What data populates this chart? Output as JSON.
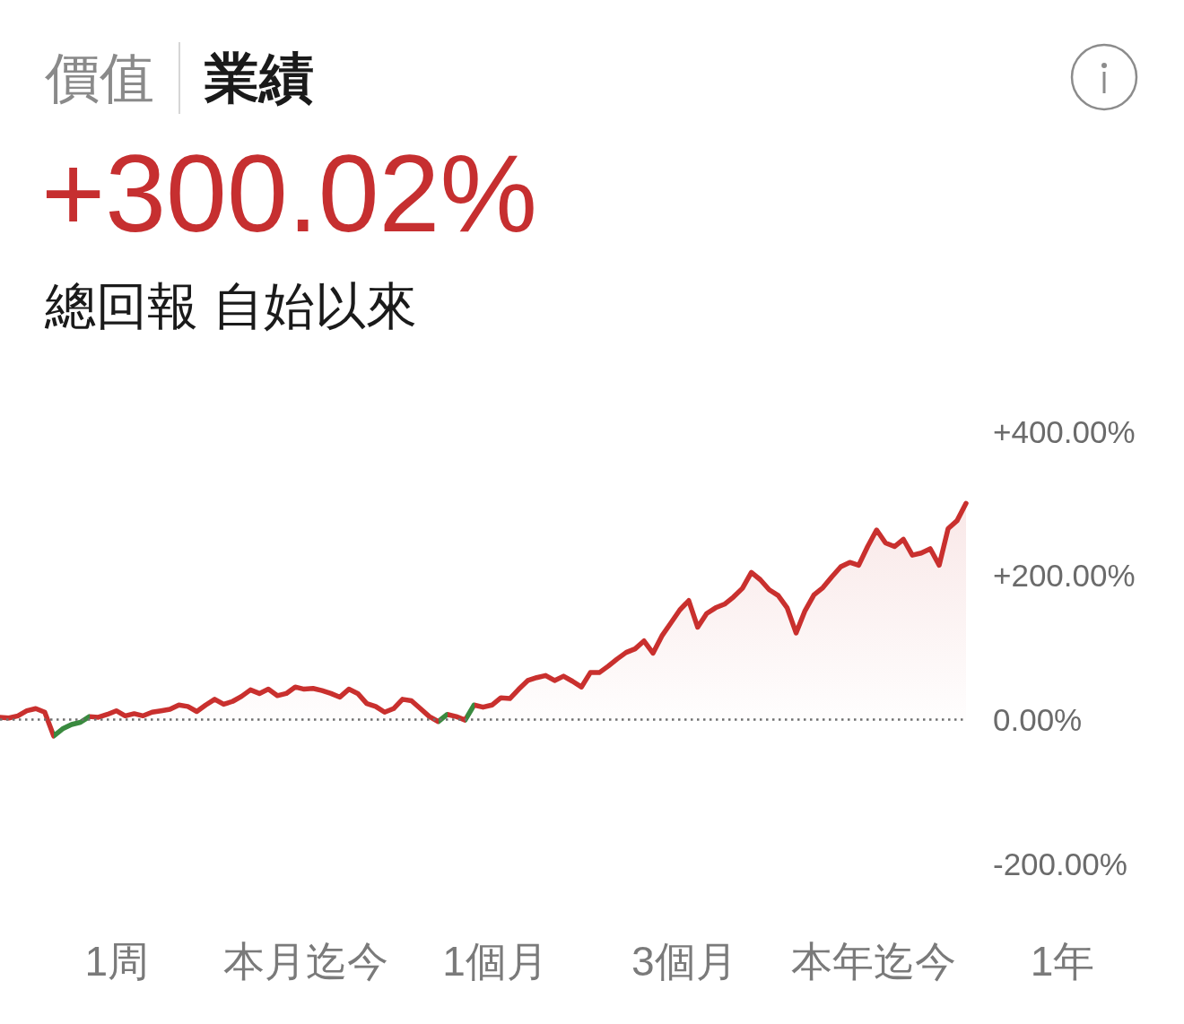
{
  "chart_data": {
    "type": "area",
    "title": "+300.02%",
    "subtitle": "總回報 自始以來",
    "annotations": [
      "價值",
      "業績",
      "1周",
      "本月迄今",
      "1個月",
      "3個月",
      "本年迄今",
      "1年"
    ],
    "categories": [
      null,
      null,
      null,
      null,
      null,
      null,
      null,
      null,
      null,
      null,
      null,
      null,
      null,
      null,
      null,
      null,
      null,
      null,
      null,
      null,
      null,
      null,
      null,
      null,
      null,
      null,
      null,
      null,
      null,
      null,
      null,
      null,
      null,
      null,
      null,
      null,
      null,
      null,
      null,
      null,
      null,
      null,
      null,
      null,
      null,
      null,
      null,
      null,
      null,
      null,
      null,
      null,
      null,
      null,
      null,
      null,
      null,
      null,
      null,
      null,
      null,
      null,
      null,
      null,
      null,
      null,
      null,
      null,
      null,
      null,
      null,
      null,
      null,
      null,
      null,
      null,
      null,
      null,
      null,
      null,
      null,
      null,
      null,
      null,
      null,
      null,
      null,
      null,
      null,
      null,
      null,
      null,
      null,
      null,
      null,
      null,
      null,
      null,
      null,
      null,
      null,
      null,
      null,
      null,
      null,
      null,
      null,
      null,
      null
    ],
    "series": [
      {
        "color": "#c9302e",
        "colors": [
          "#c9302e",
          "#c9302e",
          "#c9302e",
          "#c9302e",
          "#c9302e",
          "#c9302e",
          "#3a8a3f",
          "#3a8a3f",
          "#3a8a3f",
          "#3a8a3f",
          "#c9302e",
          "#c9302e",
          "#c9302e",
          "#c9302e",
          "#c9302e",
          "#c9302e",
          "#c9302e",
          "#c9302e",
          "#c9302e",
          "#c9302e",
          "#c9302e",
          "#c9302e",
          "#c9302e",
          "#c9302e",
          "#c9302e",
          "#c9302e",
          "#c9302e",
          "#c9302e",
          "#c9302e",
          "#c9302e",
          "#c9302e",
          "#c9302e",
          "#c9302e",
          "#c9302e",
          "#c9302e",
          "#c9302e",
          "#c9302e",
          "#c9302e",
          "#c9302e",
          "#c9302e",
          "#c9302e",
          "#c9302e",
          "#c9302e",
          "#c9302e",
          "#c9302e",
          "#c9302e",
          "#c9302e",
          "#c9302e",
          "#c9302e",
          "#3a8a3f",
          "#c9302e",
          "#c9302e",
          "#3a8a3f",
          "#c9302e",
          "#c9302e",
          "#c9302e",
          "#c9302e",
          "#c9302e",
          "#c9302e",
          "#c9302e",
          "#c9302e",
          "#c9302e",
          "#c9302e",
          "#c9302e",
          "#c9302e",
          "#c9302e",
          "#c9302e",
          "#c9302e",
          "#c9302e",
          "#c9302e",
          "#c9302e",
          "#c9302e",
          "#c9302e",
          "#c9302e",
          "#c9302e",
          "#c9302e",
          "#c9302e",
          "#c9302e",
          "#c9302e",
          "#c9302e",
          "#c9302e",
          "#c9302e",
          "#c9302e",
          "#c9302e",
          "#c9302e",
          "#c9302e",
          "#c9302e",
          "#c9302e",
          "#c9302e",
          "#c9302e",
          "#c9302e",
          "#c9302e",
          "#c9302e",
          "#c9302e",
          "#c9302e",
          "#c9302e",
          "#c9302e",
          "#c9302e",
          "#c9302e",
          "#c9302e",
          "#c9302e",
          "#c9302e",
          "#c9302e",
          "#c9302e",
          "#c9302e",
          "#c9302e",
          "#c9302e",
          "#c9302e",
          "#c9302e"
        ],
        "values": [
          3,
          2,
          5,
          12,
          15,
          10,
          -23,
          -13,
          -7,
          -4,
          4,
          3,
          7,
          12,
          5,
          8,
          5,
          10,
          12,
          14,
          20,
          18,
          11,
          20,
          28,
          21,
          25,
          32,
          41,
          36,
          42,
          33,
          36,
          45,
          42,
          43,
          40,
          36,
          31,
          42,
          36,
          22,
          18,
          10,
          15,
          28,
          26,
          15,
          4,
          -3,
          7,
          4,
          -1,
          20,
          17,
          20,
          30,
          29,
          42,
          54,
          58,
          61,
          54,
          60,
          53,
          45,
          65,
          65,
          74,
          84,
          93,
          98,
          109,
          92,
          116,
          134,
          152,
          165,
          128,
          147,
          155,
          160,
          170,
          182,
          204,
          194,
          180,
          172,
          155,
          120,
          151,
          173,
          183,
          198,
          212,
          218,
          214,
          240,
          263,
          245,
          240,
          250,
          228,
          231,
          237,
          214,
          265,
          276,
          300
        ]
      }
    ],
    "ylim": [
      -200,
      400
    ],
    "yticks": [
      {
        "value": -200,
        "label": "-200.00%"
      },
      {
        "value": 0,
        "label": "0.00%"
      },
      {
        "value": 200,
        "label": "+200.00%"
      },
      {
        "value": 400,
        "label": "+400.00%"
      }
    ],
    "ref_lines": [
      {
        "axis": "y",
        "value": 0,
        "color": "#707070",
        "line_style": "dotted"
      }
    ],
    "tick_labels": "y"
  }
}
